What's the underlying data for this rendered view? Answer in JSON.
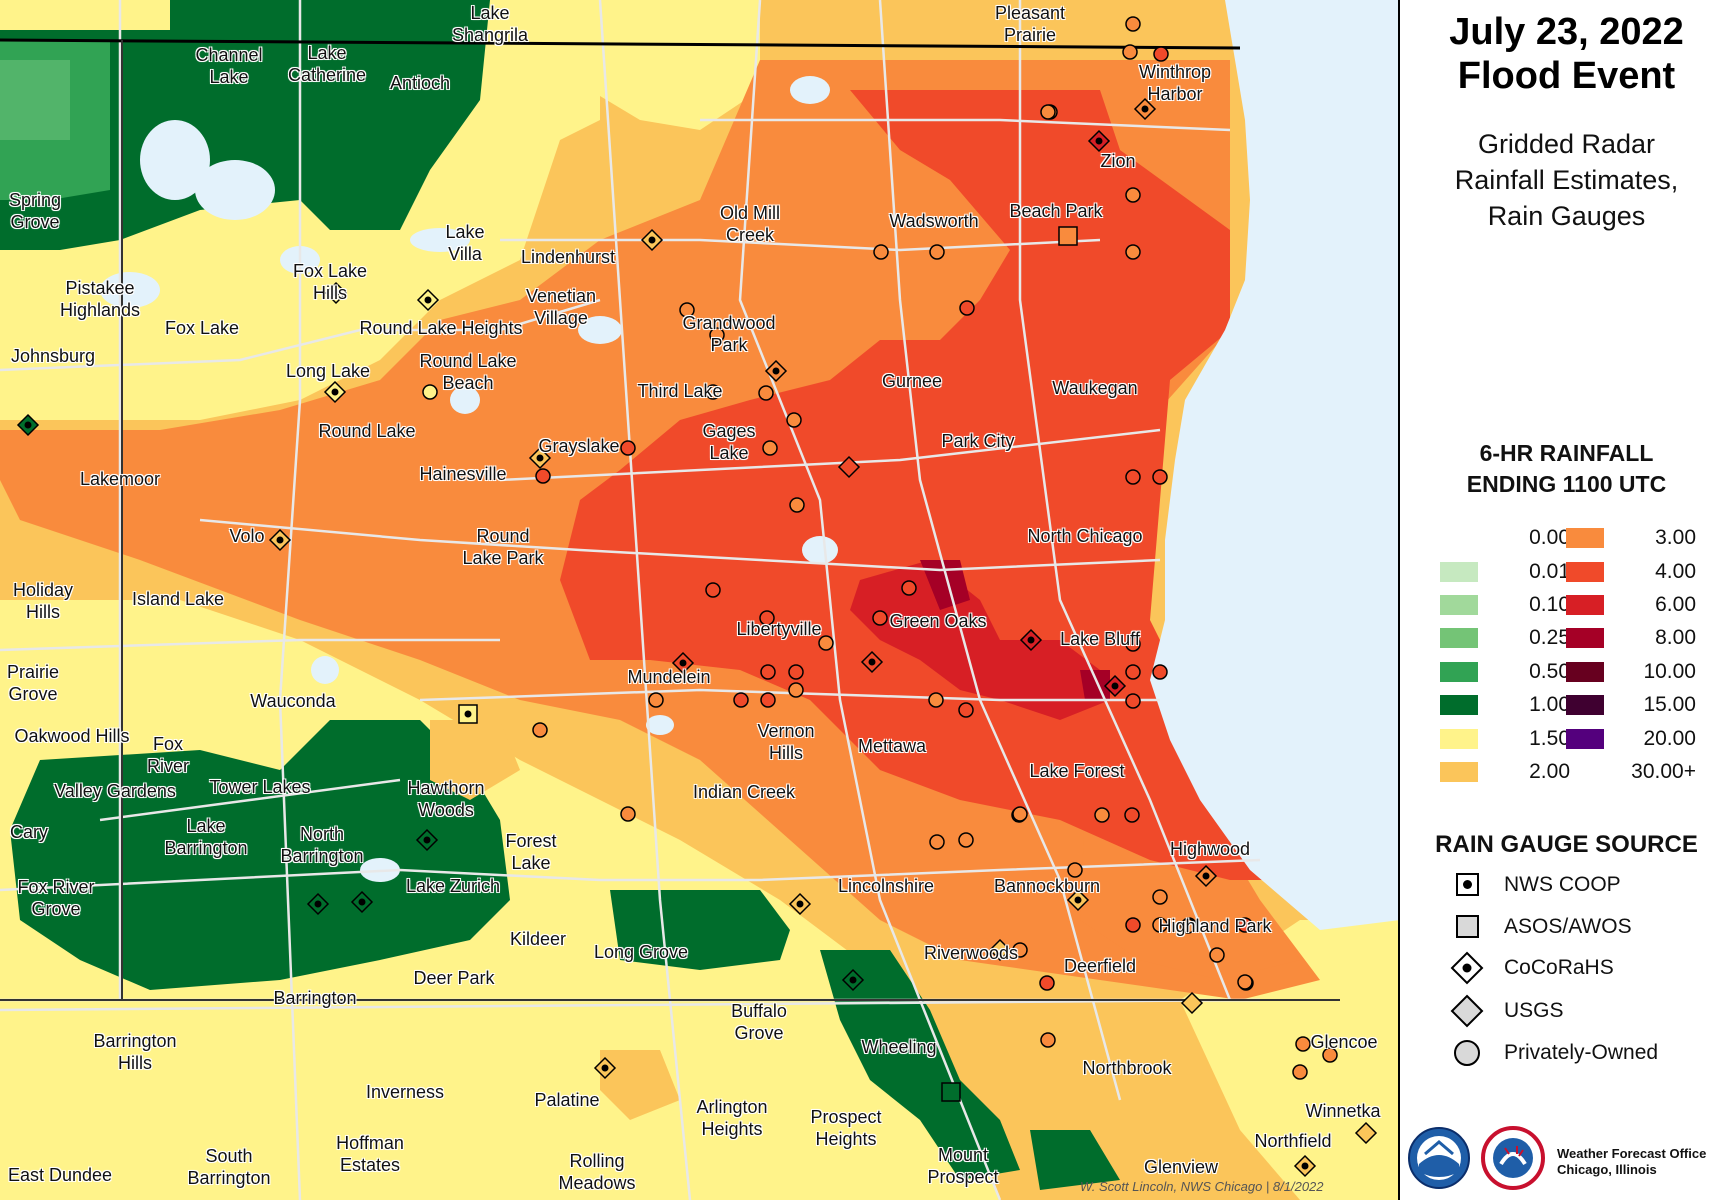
{
  "title": "July 23, 2022\nFlood Event",
  "subtitle": "Gridded Radar\nRainfall Estimates,\nRain Gauges",
  "legend": {
    "heading": "6-HR RAINFALL\nENDING 1100 UTC",
    "items": [
      {
        "label": "0.00",
        "color": "#ffffff"
      },
      {
        "label": "0.01",
        "color": "#c6e9c0"
      },
      {
        "label": "0.10",
        "color": "#a1d99b"
      },
      {
        "label": "0.25",
        "color": "#74c476"
      },
      {
        "label": "0.50",
        "color": "#31a354"
      },
      {
        "label": "1.00",
        "color": "#006d2c"
      },
      {
        "label": "1.50",
        "color": "#fff38a"
      },
      {
        "label": "2.00",
        "color": "#fbc55a"
      },
      {
        "label": "3.00",
        "color": "#f98b3d"
      },
      {
        "label": "4.00",
        "color": "#f04a2a"
      },
      {
        "label": "6.00",
        "color": "#d71f25"
      },
      {
        "label": "8.00",
        "color": "#a50026"
      },
      {
        "label": "10.00",
        "color": "#67001f"
      },
      {
        "label": "15.00",
        "color": "#3f0030"
      },
      {
        "label": "20.00",
        "color": "#54007d"
      },
      {
        "label": "30.00+",
        "color": "#ffffff"
      }
    ]
  },
  "gauge_source": {
    "heading": "RAIN GAUGE SOURCE",
    "items": [
      {
        "label": "NWS COOP",
        "icon": "square-dot-icon"
      },
      {
        "label": "ASOS/AWOS",
        "icon": "square-icon"
      },
      {
        "label": "CoCoRaHS",
        "icon": "diamond-dot-icon"
      },
      {
        "label": "USGS",
        "icon": "diamond-icon"
      },
      {
        "label": "Privately-Owned",
        "icon": "circle-icon"
      }
    ]
  },
  "office": "Weather Forecast Office\nChicago, Illinois",
  "credit": "W. Scott Lincoln, NWS Chicago | 8/1/2022",
  "places": [
    "Lake\nShangrila",
    "Pleasant\nPrairie",
    "Channel\nLake",
    "Lake\nCatherine",
    "Antioch",
    "Winthrop\nHarbor",
    "Zion",
    "Spring\nGrove",
    "Old Mill\nCreek",
    "Wadsworth",
    "Beach Park",
    "Lake\nVilla",
    "Lindenhurst",
    "Fox Lake\nHills",
    "Pistakee\nHighlands",
    "Venetian\nVillage",
    "Grandwood\nPark",
    "Fox Lake",
    "Round Lake Heights",
    "Johnsburg",
    "Long Lake",
    "Round Lake\nBeach",
    "Third Lake",
    "Gurnee",
    "Waukegan",
    "Round Lake",
    "Gages\nLake",
    "Grayslake",
    "Park City",
    "Lakemoor",
    "Hainesville",
    "Volo",
    "Round\nLake Park",
    "North Chicago",
    "Holiday\nHills",
    "Island Lake",
    "Libertyville",
    "Green Oaks",
    "Lake Bluff",
    "Prairie\nGrove",
    "Mundelein",
    "Wauconda",
    "Oakwood Hills",
    "Fox\nRiver",
    "Vernon\nHills",
    "Mettawa",
    "Tower Lakes",
    "Lake Forest",
    "Valley Gardens",
    "Hawthorn\nWoods",
    "Indian Creek",
    "Cary",
    "Lake\nBarrington",
    "North\nBarrington",
    "Forest\nLake",
    "Highwood",
    "Fox River\nGrove",
    "Lake Zurich",
    "Lincolnshire",
    "Bannockburn",
    "Highland Park",
    "Kildeer",
    "Long Grove",
    "Riverwoods",
    "Deer Park",
    "Deerfield",
    "Barrington",
    "Buffalo\nGrove",
    "Barrington\nHills",
    "Wheeling",
    "Glencoe",
    "Northbrook",
    "Inverness",
    "Palatine",
    "Arlington\nHeights",
    "Prospect\nHeights",
    "Winnetka",
    "Hoffman\nEstates",
    "Mount\nProspect",
    "Northfield",
    "South\nBarrington",
    "Rolling\nMeadows",
    "Glenview",
    "East Dundee"
  ]
}
